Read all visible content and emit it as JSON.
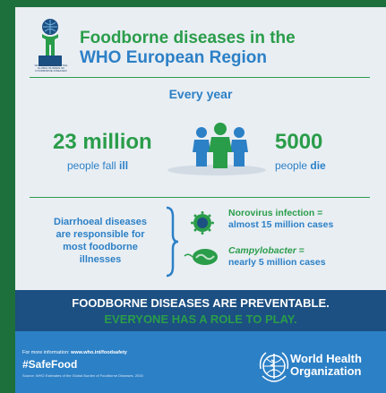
{
  "header": {
    "logo_caption": "WHO ESTIMATES OF THE GLOBAL BURDEN OF FOODBORNE DISEASES",
    "title_line1": "Foodborne diseases in the",
    "title_line2": "WHO European Region"
  },
  "stats": {
    "period": "Every year",
    "ill_number": "23 million",
    "ill_caption_prefix": "people fall ",
    "ill_caption_emph": "ill",
    "die_number": "5000",
    "die_caption_prefix": "people ",
    "die_caption_emph": "die"
  },
  "causes": {
    "diarrhoeal_lines": [
      "Diarrhoeal diseases",
      "are responsible for",
      "most foodborne",
      "illnesses"
    ],
    "norovirus_line1": "Norovirus infection =",
    "norovirus_line2": "almost 15 million cases",
    "campy_line1_name": "Campylobacter",
    "campy_line1_suffix": " =",
    "campy_line2": "nearly 5 million cases"
  },
  "banner": {
    "line1": "FOODBORNE DISEASES ARE PREVENTABLE.",
    "line2": "EVERYONE HAS A ROLE TO PLAY."
  },
  "footer": {
    "more_info_prefix": "For more information: ",
    "more_info_url": "www.who.int/foodsafety",
    "hashtag": "#SafeFood",
    "source": "Source: WHO Estimates of the Global Burden of Foodborne Diseases. 2015",
    "who_line1": "World Health",
    "who_line2": "Organization"
  },
  "colors": {
    "green": "#2a9d4a",
    "blue": "#2c80c6",
    "navy": "#1c4f82",
    "background": "#e9eef3"
  },
  "icons": [
    "globe-person-logo-icon",
    "people-group-icon",
    "norovirus-icon",
    "campylobacter-icon",
    "who-emblem-icon"
  ]
}
